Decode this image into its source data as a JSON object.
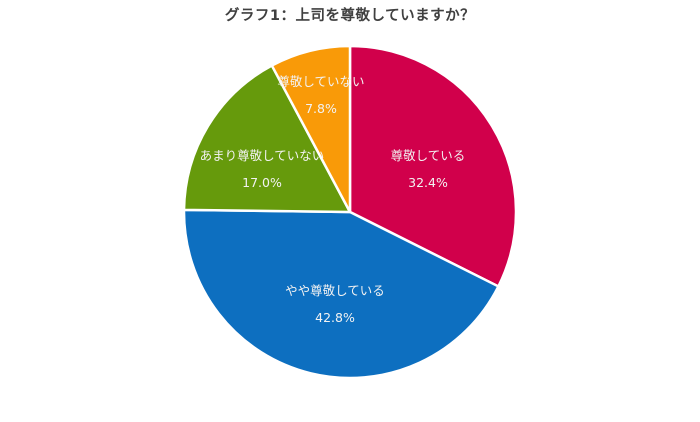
{
  "chart_data": {
    "type": "pie",
    "title": "グラフ1：上司を尊敬していますか？",
    "start_angle_deg": 0,
    "direction": "clockwise",
    "categories": [
      "尊敬している",
      "やや尊敬している",
      "あまり尊敬していない",
      "尊敬していない"
    ],
    "values": [
      32.4,
      42.8,
      17.0,
      7.8
    ],
    "value_labels": [
      "32.4%",
      "42.8%",
      "17.0%",
      "7.8%"
    ],
    "colors": [
      "#d1004b",
      "#0d6fc0",
      "#669a0c",
      "#f99a08"
    ],
    "label_color": "#f2f2f2",
    "legend": "none",
    "unit": "%"
  },
  "slices": [
    {
      "label": "尊敬している",
      "value": "32.4%",
      "color": "#d1004b"
    },
    {
      "label": "やや尊敬している",
      "value": "42.8%",
      "color": "#0d6fc0"
    },
    {
      "label": "あまり尊敬していない",
      "value": "17.0%",
      "color": "#669a0c"
    },
    {
      "label": "尊敬していない",
      "value": "7.8%",
      "color": "#f99a08"
    }
  ]
}
